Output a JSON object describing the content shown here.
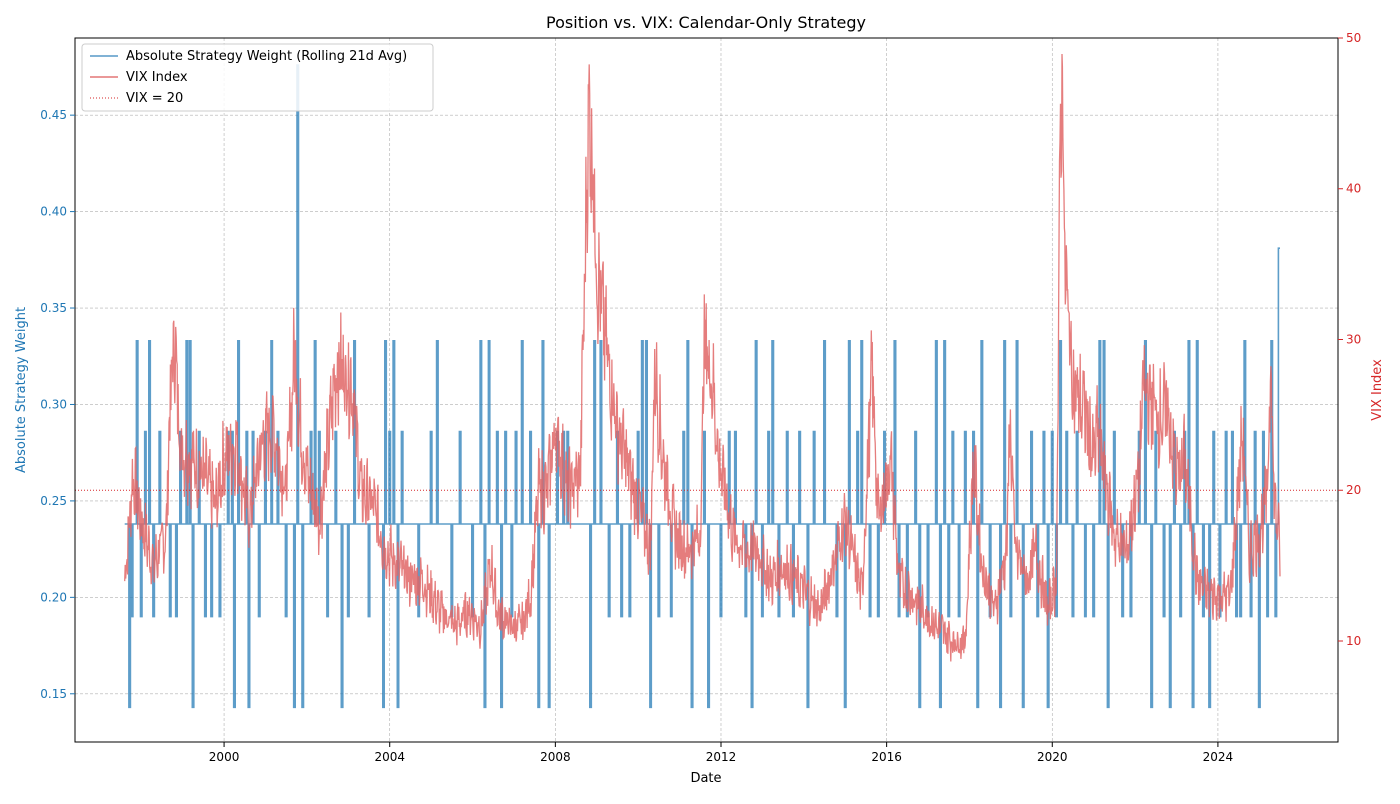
{
  "chart_data": {
    "type": "line",
    "title": "Position vs. VIX: Calendar-Only Strategy",
    "xlabel": "Date",
    "x_ticks": [
      "2000",
      "2004",
      "2008",
      "2012",
      "2016",
      "2020",
      "2024"
    ],
    "x_range": [
      1996.4,
      2026.9
    ],
    "grid": true,
    "legend_placement": "top-left",
    "left_axis": {
      "label": "Absolute Strategy Weight",
      "color": "#1f77b4",
      "ylim": [
        0.125,
        0.49
      ],
      "ticks": [
        "0.15",
        "0.20",
        "0.25",
        "0.30",
        "0.35",
        "0.40",
        "0.45"
      ]
    },
    "right_axis": {
      "label": "VIX Index",
      "color": "#d62728",
      "ylim": [
        3.3,
        50
      ],
      "ticks": [
        "10",
        "20",
        "30",
        "40",
        "50"
      ]
    },
    "series": [
      {
        "name": "Absolute Strategy Weight (Rolling 21d Avg)",
        "axis": "left",
        "color": "#1f77b4",
        "baseline": 0.238,
        "x_start": 1997.6,
        "x_end": 2025.5,
        "spikes": [
          [
            1997.72,
            0.143
          ],
          [
            1997.78,
            0.19
          ],
          [
            1997.9,
            0.333
          ],
          [
            1998.0,
            0.19
          ],
          [
            1998.1,
            0.286
          ],
          [
            1998.2,
            0.333
          ],
          [
            1998.3,
            0.19
          ],
          [
            1998.45,
            0.286
          ],
          [
            1998.7,
            0.19
          ],
          [
            1998.85,
            0.19
          ],
          [
            1998.95,
            0.286
          ],
          [
            1999.1,
            0.333
          ],
          [
            1999.18,
            0.333
          ],
          [
            1999.25,
            0.143
          ],
          [
            1999.4,
            0.286
          ],
          [
            1999.55,
            0.19
          ],
          [
            1999.7,
            0.19
          ],
          [
            1999.9,
            0.19
          ],
          [
            2000.1,
            0.286
          ],
          [
            2000.2,
            0.286
          ],
          [
            2000.25,
            0.143
          ],
          [
            2000.35,
            0.333
          ],
          [
            2000.55,
            0.286
          ],
          [
            2000.6,
            0.143
          ],
          [
            2000.7,
            0.286
          ],
          [
            2000.85,
            0.19
          ],
          [
            2001.0,
            0.286
          ],
          [
            2001.15,
            0.333
          ],
          [
            2001.3,
            0.286
          ],
          [
            2001.5,
            0.19
          ],
          [
            2001.7,
            0.143
          ],
          [
            2001.78,
            0.476
          ],
          [
            2001.9,
            0.143
          ],
          [
            2002.1,
            0.286
          ],
          [
            2002.2,
            0.333
          ],
          [
            2002.3,
            0.286
          ],
          [
            2002.5,
            0.19
          ],
          [
            2002.7,
            0.286
          ],
          [
            2002.85,
            0.143
          ],
          [
            2003.0,
            0.19
          ],
          [
            2003.15,
            0.333
          ],
          [
            2003.5,
            0.19
          ],
          [
            2003.85,
            0.143
          ],
          [
            2003.9,
            0.333
          ],
          [
            2004.0,
            0.286
          ],
          [
            2004.1,
            0.333
          ],
          [
            2004.2,
            0.143
          ],
          [
            2004.3,
            0.286
          ],
          [
            2004.7,
            0.19
          ],
          [
            2005.0,
            0.286
          ],
          [
            2005.15,
            0.333
          ],
          [
            2005.5,
            0.19
          ],
          [
            2005.7,
            0.286
          ],
          [
            2006.0,
            0.19
          ],
          [
            2006.2,
            0.333
          ],
          [
            2006.3,
            0.143
          ],
          [
            2006.4,
            0.333
          ],
          [
            2006.6,
            0.286
          ],
          [
            2006.7,
            0.143
          ],
          [
            2006.8,
            0.286
          ],
          [
            2006.95,
            0.19
          ],
          [
            2007.05,
            0.286
          ],
          [
            2007.2,
            0.333
          ],
          [
            2007.4,
            0.286
          ],
          [
            2007.6,
            0.143
          ],
          [
            2007.7,
            0.333
          ],
          [
            2007.85,
            0.143
          ],
          [
            2008.05,
            0.286
          ],
          [
            2008.2,
            0.286
          ],
          [
            2008.3,
            0.286
          ],
          [
            2008.85,
            0.143
          ],
          [
            2008.95,
            0.333
          ],
          [
            2009.1,
            0.333
          ],
          [
            2009.3,
            0.19
          ],
          [
            2009.5,
            0.286
          ],
          [
            2009.6,
            0.19
          ],
          [
            2009.8,
            0.19
          ],
          [
            2010.0,
            0.286
          ],
          [
            2010.1,
            0.333
          ],
          [
            2010.2,
            0.333
          ],
          [
            2010.3,
            0.143
          ],
          [
            2010.5,
            0.19
          ],
          [
            2010.8,
            0.19
          ],
          [
            2011.1,
            0.286
          ],
          [
            2011.2,
            0.333
          ],
          [
            2011.3,
            0.143
          ],
          [
            2011.6,
            0.286
          ],
          [
            2011.7,
            0.143
          ],
          [
            2012.0,
            0.19
          ],
          [
            2012.2,
            0.286
          ],
          [
            2012.35,
            0.286
          ],
          [
            2012.6,
            0.19
          ],
          [
            2012.75,
            0.143
          ],
          [
            2012.85,
            0.333
          ],
          [
            2013.0,
            0.19
          ],
          [
            2013.15,
            0.286
          ],
          [
            2013.25,
            0.333
          ],
          [
            2013.4,
            0.19
          ],
          [
            2013.6,
            0.286
          ],
          [
            2013.75,
            0.19
          ],
          [
            2013.9,
            0.286
          ],
          [
            2014.1,
            0.143
          ],
          [
            2014.25,
            0.286
          ],
          [
            2014.5,
            0.333
          ],
          [
            2014.8,
            0.19
          ],
          [
            2015.0,
            0.143
          ],
          [
            2015.1,
            0.333
          ],
          [
            2015.3,
            0.286
          ],
          [
            2015.4,
            0.333
          ],
          [
            2015.6,
            0.19
          ],
          [
            2015.8,
            0.19
          ],
          [
            2015.95,
            0.286
          ],
          [
            2016.2,
            0.333
          ],
          [
            2016.3,
            0.19
          ],
          [
            2016.5,
            0.19
          ],
          [
            2016.7,
            0.286
          ],
          [
            2016.8,
            0.143
          ],
          [
            2017.0,
            0.19
          ],
          [
            2017.2,
            0.333
          ],
          [
            2017.3,
            0.143
          ],
          [
            2017.4,
            0.333
          ],
          [
            2017.5,
            0.19
          ],
          [
            2017.6,
            0.286
          ],
          [
            2017.75,
            0.19
          ],
          [
            2017.9,
            0.286
          ],
          [
            2018.1,
            0.286
          ],
          [
            2018.2,
            0.143
          ],
          [
            2018.3,
            0.333
          ],
          [
            2018.5,
            0.19
          ],
          [
            2018.75,
            0.143
          ],
          [
            2018.85,
            0.333
          ],
          [
            2019.0,
            0.19
          ],
          [
            2019.15,
            0.333
          ],
          [
            2019.3,
            0.143
          ],
          [
            2019.5,
            0.286
          ],
          [
            2019.65,
            0.19
          ],
          [
            2019.8,
            0.286
          ],
          [
            2019.9,
            0.143
          ],
          [
            2020.0,
            0.286
          ],
          [
            2020.1,
            0.19
          ],
          [
            2020.2,
            0.333
          ],
          [
            2020.35,
            0.286
          ],
          [
            2020.5,
            0.19
          ],
          [
            2020.6,
            0.286
          ],
          [
            2020.8,
            0.19
          ],
          [
            2021.0,
            0.19
          ],
          [
            2021.15,
            0.333
          ],
          [
            2021.25,
            0.333
          ],
          [
            2021.35,
            0.143
          ],
          [
            2021.5,
            0.286
          ],
          [
            2021.7,
            0.19
          ],
          [
            2021.9,
            0.19
          ],
          [
            2022.1,
            0.286
          ],
          [
            2022.25,
            0.333
          ],
          [
            2022.4,
            0.143
          ],
          [
            2022.5,
            0.286
          ],
          [
            2022.7,
            0.19
          ],
          [
            2022.85,
            0.143
          ],
          [
            2022.95,
            0.286
          ],
          [
            2023.1,
            0.19
          ],
          [
            2023.2,
            0.286
          ],
          [
            2023.3,
            0.333
          ],
          [
            2023.4,
            0.143
          ],
          [
            2023.5,
            0.333
          ],
          [
            2023.65,
            0.19
          ],
          [
            2023.8,
            0.143
          ],
          [
            2023.9,
            0.286
          ],
          [
            2024.05,
            0.19
          ],
          [
            2024.2,
            0.286
          ],
          [
            2024.35,
            0.286
          ],
          [
            2024.45,
            0.19
          ],
          [
            2024.55,
            0.19
          ],
          [
            2024.65,
            0.333
          ],
          [
            2024.8,
            0.19
          ],
          [
            2024.9,
            0.286
          ],
          [
            2025.0,
            0.143
          ],
          [
            2025.1,
            0.286
          ],
          [
            2025.2,
            0.19
          ],
          [
            2025.3,
            0.333
          ],
          [
            2025.4,
            0.19
          ]
        ],
        "end_value": 0.381
      },
      {
        "name": "VIX Index",
        "axis": "right",
        "color": "#e06666",
        "anchors": [
          [
            1997.6,
            14
          ],
          [
            1997.8,
            21
          ],
          [
            1998.0,
            18
          ],
          [
            1998.3,
            15
          ],
          [
            1998.6,
            17
          ],
          [
            1998.7,
            26
          ],
          [
            1998.8,
            30
          ],
          [
            1998.95,
            23
          ],
          [
            1999.2,
            22
          ],
          [
            1999.5,
            21
          ],
          [
            1999.8,
            19
          ],
          [
            2000.0,
            22
          ],
          [
            2000.3,
            23
          ],
          [
            2000.6,
            18
          ],
          [
            2000.9,
            23
          ],
          [
            2001.2,
            24
          ],
          [
            2001.5,
            20
          ],
          [
            2001.72,
            30
          ],
          [
            2001.8,
            25
          ],
          [
            2002.0,
            21
          ],
          [
            2002.3,
            18
          ],
          [
            2002.55,
            24
          ],
          [
            2002.7,
            28
          ],
          [
            2002.9,
            28
          ],
          [
            2003.1,
            27
          ],
          [
            2003.3,
            20
          ],
          [
            2003.6,
            19
          ],
          [
            2003.9,
            16
          ],
          [
            2004.2,
            15
          ],
          [
            2004.5,
            14
          ],
          [
            2004.8,
            14
          ],
          [
            2005.2,
            12
          ],
          [
            2005.6,
            11
          ],
          [
            2005.9,
            12
          ],
          [
            2006.2,
            11
          ],
          [
            2006.45,
            15
          ],
          [
            2006.6,
            12
          ],
          [
            2006.9,
            11
          ],
          [
            2007.2,
            11
          ],
          [
            2007.4,
            13
          ],
          [
            2007.6,
            20
          ],
          [
            2007.8,
            20
          ],
          [
            2008.0,
            24
          ],
          [
            2008.3,
            20
          ],
          [
            2008.6,
            21
          ],
          [
            2008.8,
            45
          ],
          [
            2008.9,
            42
          ],
          [
            2009.0,
            35
          ],
          [
            2009.2,
            30
          ],
          [
            2009.5,
            24
          ],
          [
            2009.8,
            21
          ],
          [
            2010.0,
            19
          ],
          [
            2010.3,
            16
          ],
          [
            2010.4,
            28
          ],
          [
            2010.6,
            22
          ],
          [
            2010.9,
            17
          ],
          [
            2011.2,
            16
          ],
          [
            2011.5,
            17
          ],
          [
            2011.6,
            30
          ],
          [
            2011.8,
            27
          ],
          [
            2011.95,
            22
          ],
          [
            2012.3,
            17
          ],
          [
            2012.6,
            16
          ],
          [
            2012.9,
            16
          ],
          [
            2013.2,
            14
          ],
          [
            2013.5,
            15
          ],
          [
            2013.8,
            14
          ],
          [
            2014.1,
            13
          ],
          [
            2014.4,
            12
          ],
          [
            2014.8,
            16
          ],
          [
            2015.0,
            18
          ],
          [
            2015.4,
            13
          ],
          [
            2015.65,
            28
          ],
          [
            2015.8,
            18
          ],
          [
            2016.1,
            22
          ],
          [
            2016.3,
            14
          ],
          [
            2016.6,
            13
          ],
          [
            2016.9,
            12
          ],
          [
            2017.2,
            11
          ],
          [
            2017.6,
            10
          ],
          [
            2017.9,
            10
          ],
          [
            2018.1,
            22
          ],
          [
            2018.3,
            15
          ],
          [
            2018.6,
            12
          ],
          [
            2018.9,
            16
          ],
          [
            2018.98,
            25
          ],
          [
            2019.1,
            16
          ],
          [
            2019.4,
            14
          ],
          [
            2019.6,
            16
          ],
          [
            2019.9,
            12
          ],
          [
            2020.1,
            14
          ],
          [
            2020.2,
            45
          ],
          [
            2020.25,
            48
          ],
          [
            2020.3,
            35
          ],
          [
            2020.5,
            27
          ],
          [
            2020.8,
            25
          ],
          [
            2021.0,
            22
          ],
          [
            2021.1,
            24
          ],
          [
            2021.5,
            17
          ],
          [
            2021.8,
            16
          ],
          [
            2022.1,
            21
          ],
          [
            2022.2,
            27
          ],
          [
            2022.5,
            25
          ],
          [
            2022.8,
            25
          ],
          [
            2023.0,
            21
          ],
          [
            2023.2,
            22
          ],
          [
            2023.5,
            14
          ],
          [
            2023.8,
            13
          ],
          [
            2024.0,
            13
          ],
          [
            2024.3,
            13
          ],
          [
            2024.6,
            24
          ],
          [
            2024.75,
            16
          ],
          [
            2025.0,
            17
          ],
          [
            2025.2,
            20
          ],
          [
            2025.28,
            30
          ],
          [
            2025.35,
            20
          ],
          [
            2025.5,
            16
          ]
        ]
      },
      {
        "name": "VIX = 20",
        "axis": "right",
        "color": "#d62728",
        "style": "dotted",
        "value": 20
      }
    ]
  }
}
